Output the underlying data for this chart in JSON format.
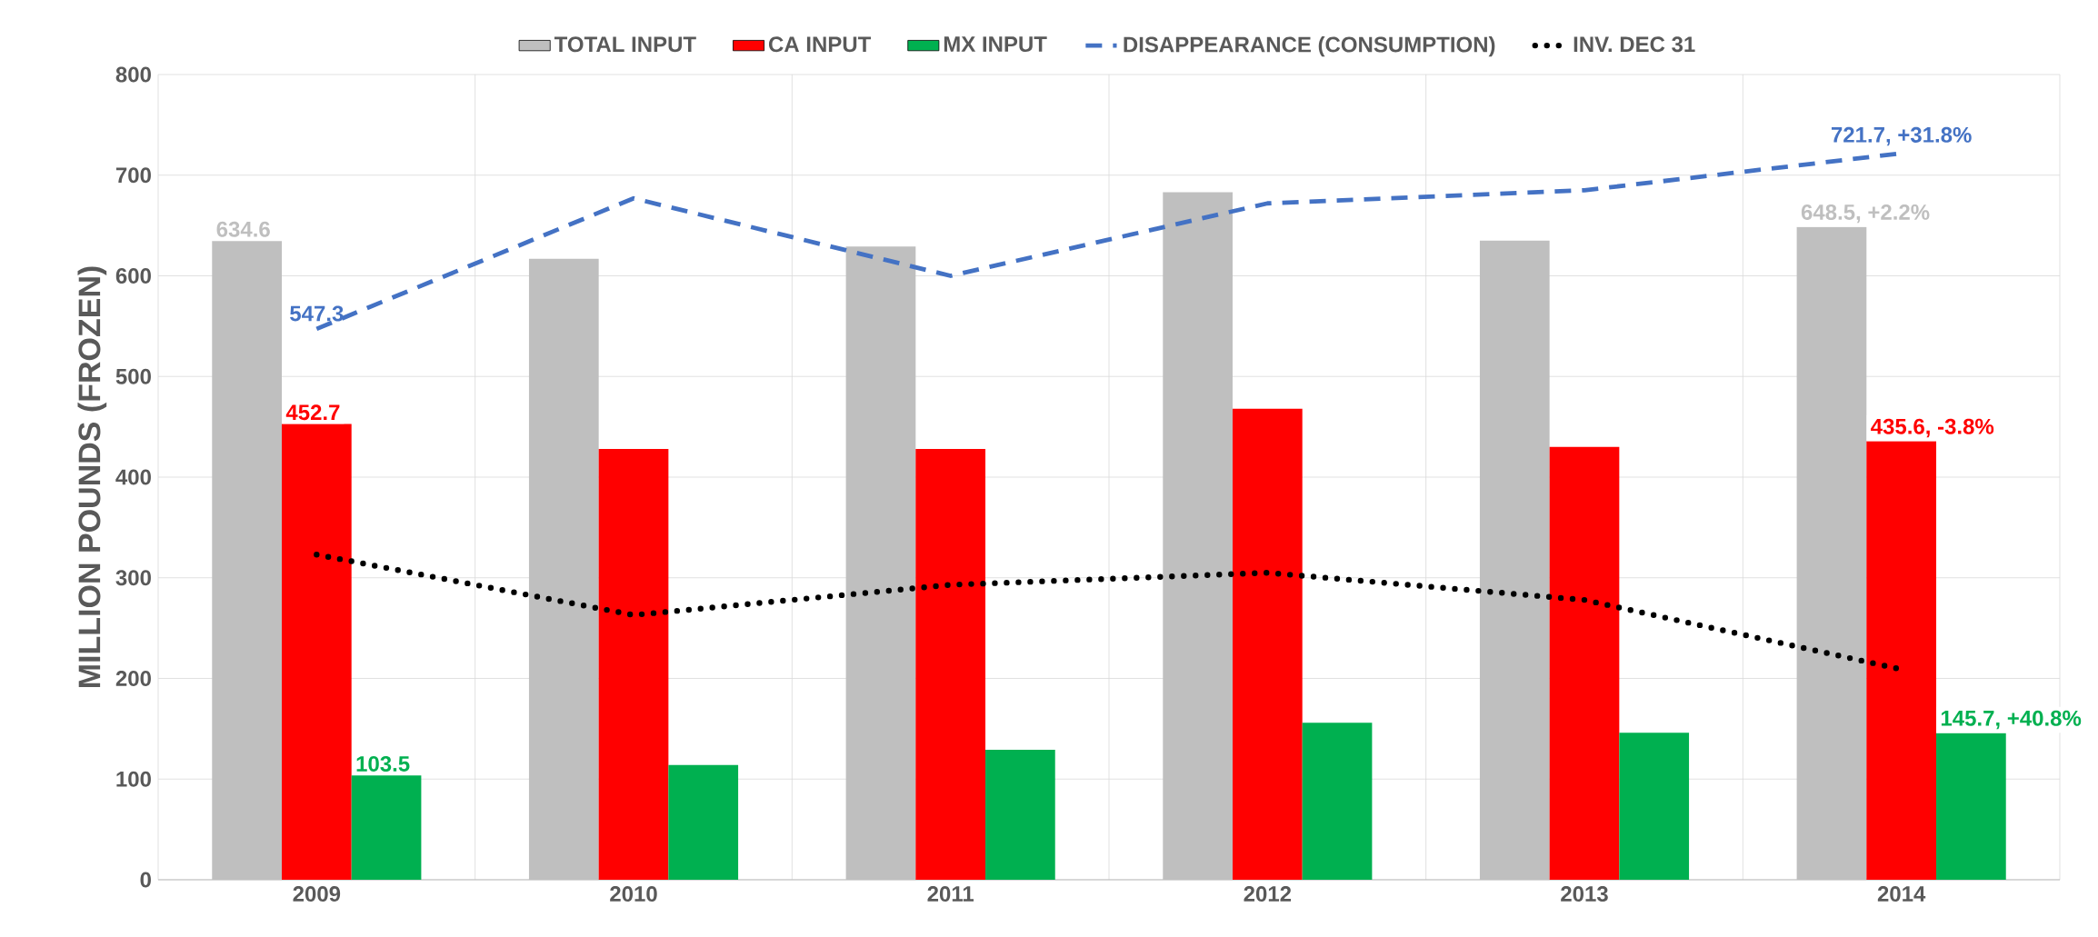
{
  "chart_data": {
    "type": "bar",
    "ylabel": "MILLION POUNDS (FROZEN)",
    "categories": [
      "2009",
      "2010",
      "2011",
      "2012",
      "2013",
      "2014"
    ],
    "ylim": [
      0,
      800
    ],
    "yticks": [
      0,
      100,
      200,
      300,
      400,
      500,
      600,
      700,
      800
    ],
    "grid": true,
    "legend": "top",
    "marker": "none",
    "series": [
      {
        "name": "TOTAL INPUT",
        "color": "#bfbfbf",
        "values": [
          634.6,
          617,
          629,
          683,
          635,
          648.5
        ],
        "value_labels": [
          "634.6",
          null,
          null,
          null,
          null,
          "648.5, +2.2%"
        ]
      },
      {
        "name": "CA INPUT",
        "color": "#ff0000",
        "values": [
          452.7,
          428,
          428,
          468,
          430,
          435.6
        ],
        "value_labels": [
          "452.7",
          null,
          null,
          null,
          null,
          "435.6, -3.8%"
        ]
      },
      {
        "name": "MX INPUT",
        "color": "#00b050",
        "values": [
          103.5,
          114,
          129,
          156,
          146,
          145.7
        ],
        "value_labels": [
          "103.5",
          null,
          null,
          null,
          null,
          "145.7, +40.8%"
        ]
      },
      {
        "name": "DISAPPEARANCE (CONSUMPTION)",
        "type": "line",
        "line_style": "dashed",
        "color": "#4472c4",
        "values": [
          547.3,
          677,
          600,
          672,
          685,
          721.7
        ],
        "value_labels": [
          "547.3",
          null,
          null,
          null,
          null,
          "721.7, +31.8%"
        ]
      },
      {
        "name": "INV. DEC 31",
        "type": "line",
        "line_style": "dotted",
        "color": "#000000",
        "values": [
          323,
          263,
          293,
          305,
          278,
          209
        ]
      }
    ]
  }
}
